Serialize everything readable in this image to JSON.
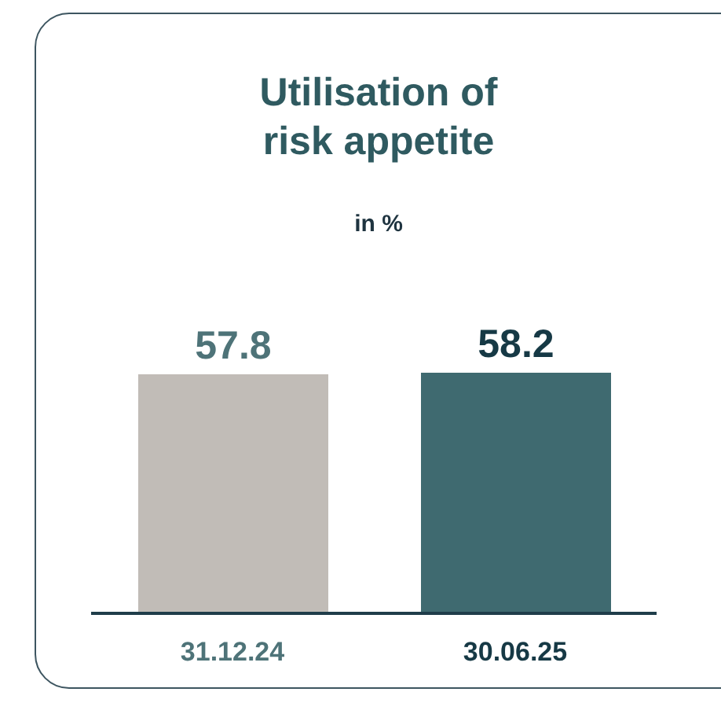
{
  "chart_data": {
    "type": "bar",
    "title": "Utilisation of\nrisk appetite",
    "subtitle": "in %",
    "categories": [
      "31.12.24",
      "30.06.25"
    ],
    "values": [
      57.8,
      58.2
    ],
    "colors": [
      "#c1bcb7",
      "#3f6a70"
    ],
    "data_labels": true
  }
}
